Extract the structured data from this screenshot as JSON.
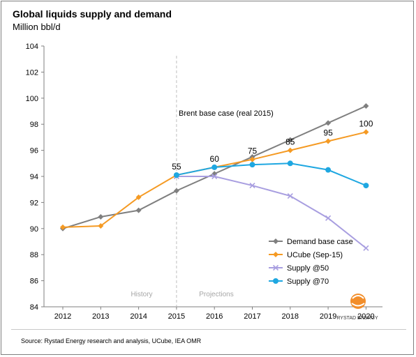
{
  "chart_data": {
    "type": "line",
    "title": "Global liquids supply and demand",
    "ylabel": "Million bbl/d",
    "xlabel": "",
    "categories": [
      "2012",
      "2013",
      "2014",
      "2015",
      "2016",
      "2017",
      "2018",
      "2019",
      "2020"
    ],
    "ylim": [
      84,
      104
    ],
    "yticks": [
      84,
      86,
      88,
      90,
      92,
      94,
      96,
      98,
      100,
      102,
      104
    ],
    "grid": false,
    "legend_position": "bottom-right",
    "series": [
      {
        "name": "Demand base case",
        "color": "#7f7f7f",
        "marker": "diamond",
        "values": [
          90.0,
          90.9,
          91.4,
          92.9,
          94.2,
          95.5,
          96.8,
          98.1,
          99.4
        ]
      },
      {
        "name": "UCube (Sep-15)",
        "color": "#f59a23",
        "marker": "diamond",
        "values": [
          90.1,
          90.2,
          92.4,
          94.1,
          94.7,
          95.3,
          96.0,
          96.7,
          97.4
        ]
      },
      {
        "name": "Supply @50",
        "color": "#a89ee0",
        "marker": "x",
        "values": [
          null,
          null,
          null,
          94.0,
          94.0,
          93.3,
          92.5,
          90.8,
          88.5
        ]
      },
      {
        "name": "Supply @70",
        "color": "#1ea7e1",
        "marker": "circle",
        "values": [
          null,
          null,
          null,
          94.1,
          94.7,
          94.9,
          95.0,
          94.5,
          93.3
        ]
      }
    ],
    "annotations": {
      "price_header": "Brent base case (real 2015)",
      "price_labels": [
        {
          "x": "2015",
          "y": 94.1,
          "text": "55"
        },
        {
          "x": "2016",
          "y": 94.7,
          "text": "60"
        },
        {
          "x": "2017",
          "y": 95.3,
          "text": "75"
        },
        {
          "x": "2018",
          "y": 96.0,
          "text": "85"
        },
        {
          "x": "2019",
          "y": 96.7,
          "text": "95"
        },
        {
          "x": "2020",
          "y": 97.4,
          "text": "100"
        }
      ],
      "divider_at": "2015",
      "history_label": "History",
      "projections_label": "Projections"
    }
  },
  "logo": {
    "text": "RYSTAD ENERGY"
  },
  "source": "Source: Rystad Energy research and analysis, UCube, IEA OMR"
}
